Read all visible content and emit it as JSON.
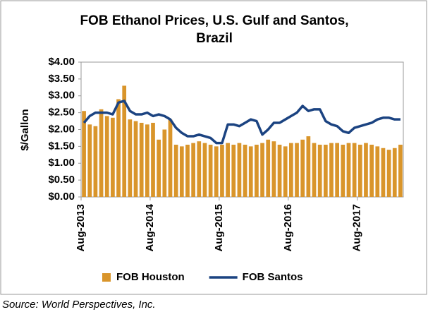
{
  "chart_data": {
    "type": "combo",
    "title": [
      "FOB Ethanol Prices, U.S. Gulf and Santos,",
      "Brazil"
    ],
    "y_label": "$/Gallon",
    "source": "Source: World Perspectives, Inc.",
    "categories": [
      "Aug-2013",
      null,
      null,
      null,
      null,
      null,
      null,
      null,
      null,
      null,
      null,
      null,
      "Aug-2014",
      null,
      null,
      null,
      null,
      null,
      null,
      null,
      null,
      null,
      null,
      null,
      "Aug-2015",
      null,
      null,
      null,
      null,
      null,
      null,
      null,
      null,
      null,
      null,
      null,
      "Aug-2016",
      null,
      null,
      null,
      null,
      null,
      null,
      null,
      null,
      null,
      null,
      null,
      "Aug-2017",
      null,
      null,
      null,
      null,
      null,
      null,
      null
    ],
    "series": [
      {
        "name": "FOB Houston",
        "type": "bar",
        "color": "#d9952b",
        "values": [
          2.55,
          2.15,
          2.1,
          2.6,
          2.4,
          2.35,
          2.9,
          3.3,
          2.3,
          2.25,
          2.2,
          2.15,
          2.2,
          1.7,
          2.0,
          2.3,
          1.55,
          1.5,
          1.55,
          1.6,
          1.65,
          1.6,
          1.55,
          1.5,
          1.55,
          1.6,
          1.55,
          1.6,
          1.55,
          1.5,
          1.55,
          1.6,
          1.7,
          1.65,
          1.55,
          1.5,
          1.6,
          1.6,
          1.7,
          1.8,
          1.6,
          1.55,
          1.55,
          1.6,
          1.6,
          1.55,
          1.6,
          1.6,
          1.55,
          1.6,
          1.55,
          1.5,
          1.45,
          1.4,
          1.45,
          1.55
        ]
      },
      {
        "name": "FOB Santos",
        "type": "line",
        "color": "#1b4381",
        "values": [
          2.2,
          2.4,
          2.5,
          2.5,
          2.5,
          2.45,
          2.8,
          2.85,
          2.55,
          2.45,
          2.45,
          2.5,
          2.4,
          2.45,
          2.4,
          2.3,
          2.05,
          1.9,
          1.8,
          1.8,
          1.85,
          1.8,
          1.75,
          1.6,
          1.6,
          2.15,
          2.15,
          2.1,
          2.2,
          2.3,
          2.25,
          1.85,
          2.0,
          2.2,
          2.2,
          2.3,
          2.4,
          2.5,
          2.7,
          2.55,
          2.6,
          2.6,
          2.25,
          2.15,
          2.1,
          1.95,
          1.9,
          2.05,
          2.1,
          2.15,
          2.2,
          2.3,
          2.35,
          2.35,
          2.3,
          2.3
        ]
      }
    ],
    "ylim": [
      0,
      4
    ],
    "yticks": [
      {
        "value": 0,
        "label": "$0.00"
      },
      {
        "value": 0.5,
        "label": "$0.50"
      },
      {
        "value": 1,
        "label": "$1.00"
      },
      {
        "value": 1.5,
        "label": "$1.50"
      },
      {
        "value": 2,
        "label": "$2.00"
      },
      {
        "value": 2.5,
        "label": "$2.50"
      },
      {
        "value": 3,
        "label": "$3.00"
      },
      {
        "value": 3.5,
        "label": "$3.50"
      },
      {
        "value": 4,
        "label": "$4.00"
      }
    ],
    "grid": false,
    "legend": "bottom"
  }
}
